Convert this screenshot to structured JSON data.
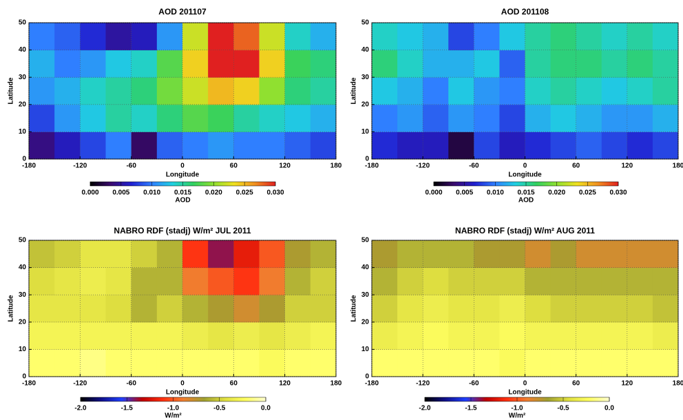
{
  "chart_data": [
    {
      "type": "heatmap",
      "title": "AOD 201107",
      "x_label": "Longitude",
      "y_label": "Latitude",
      "xlim": [
        -180,
        180
      ],
      "ylim": [
        0,
        50
      ],
      "xticks": [
        -180,
        -120,
        -60,
        0,
        60,
        120,
        180
      ],
      "yticks": [
        0,
        10,
        20,
        30,
        40,
        50
      ],
      "grid": true,
      "x": [
        -165,
        -135,
        -105,
        -75,
        -45,
        -15,
        15,
        45,
        75,
        105,
        135,
        165
      ],
      "y": [
        5,
        15,
        25,
        35,
        45
      ],
      "values": [
        [
          0.004,
          0.006,
          0.008,
          0.01,
          0.003,
          0.009,
          0.01,
          0.011,
          0.01,
          0.01,
          0.009,
          0.008
        ],
        [
          0.008,
          0.011,
          0.013,
          0.015,
          0.014,
          0.016,
          0.018,
          0.017,
          0.015,
          0.014,
          0.013,
          0.012
        ],
        [
          0.011,
          0.012,
          0.014,
          0.015,
          0.016,
          0.019,
          0.022,
          0.025,
          0.024,
          0.02,
          0.016,
          0.015
        ],
        [
          0.012,
          0.01,
          0.011,
          0.013,
          0.014,
          0.018,
          0.024,
          0.03,
          0.03,
          0.024,
          0.017,
          0.016
        ],
        [
          0.01,
          0.009,
          0.007,
          0.005,
          0.006,
          0.011,
          0.022,
          0.03,
          0.028,
          0.022,
          0.014,
          0.012
        ]
      ],
      "colorbar": {
        "label": "AOD",
        "lim": [
          0,
          0.03
        ],
        "ticks": [
          {
            "value": 0,
            "label": "0.000"
          },
          0.005,
          {
            "value": 0.01,
            "label": "0.010"
          },
          0.015,
          {
            "value": 0.02,
            "label": "0.020"
          },
          0.025,
          {
            "value": 0.03,
            "label": "0.030"
          }
        ],
        "colors": [
          "#000000",
          "#3a0a6e",
          "#2020d0",
          "#2f7fff",
          "#20d0e0",
          "#30d060",
          "#90e030",
          "#f0e020",
          "#f09020",
          "#e02020"
        ]
      }
    },
    {
      "type": "heatmap",
      "title": "AOD 201108",
      "x_label": "Longitude",
      "y_label": "Latitude",
      "xlim": [
        -180,
        180
      ],
      "ylim": [
        0,
        50
      ],
      "xticks": [
        -180,
        -120,
        -60,
        0,
        60,
        120,
        180
      ],
      "yticks": [
        0,
        10,
        20,
        30,
        40,
        50
      ],
      "grid": true,
      "x": [
        -165,
        -135,
        -105,
        -75,
        -45,
        -15,
        15,
        45,
        75,
        105,
        135,
        165
      ],
      "y": [
        5,
        15,
        25,
        35,
        45
      ],
      "values": [
        [
          0.007,
          0.006,
          0.006,
          0.002,
          0.008,
          0.006,
          0.007,
          0.008,
          0.009,
          0.008,
          0.007,
          0.008
        ],
        [
          0.01,
          0.011,
          0.009,
          0.011,
          0.01,
          0.008,
          0.012,
          0.013,
          0.012,
          0.011,
          0.011,
          0.012
        ],
        [
          0.013,
          0.012,
          0.01,
          0.013,
          0.011,
          0.01,
          0.014,
          0.015,
          0.014,
          0.013,
          0.014,
          0.015
        ],
        [
          0.016,
          0.014,
          0.012,
          0.012,
          0.013,
          0.009,
          0.015,
          0.016,
          0.016,
          0.015,
          0.016,
          0.015
        ],
        [
          0.014,
          0.013,
          0.012,
          0.008,
          0.01,
          0.013,
          0.015,
          0.016,
          0.015,
          0.014,
          0.015,
          0.014
        ]
      ],
      "colorbar": {
        "label": "AOD",
        "lim": [
          0,
          0.03
        ],
        "ticks": [
          {
            "value": 0,
            "label": "0.000"
          },
          0.005,
          {
            "value": 0.01,
            "label": "0.010"
          },
          0.015,
          {
            "value": 0.02,
            "label": "0.020"
          },
          0.025,
          {
            "value": 0.03,
            "label": "0.030"
          }
        ],
        "colors": [
          "#000000",
          "#3a0a6e",
          "#2020d0",
          "#2f7fff",
          "#20d0e0",
          "#30d060",
          "#90e030",
          "#f0e020",
          "#f09020",
          "#e02020"
        ]
      }
    },
    {
      "type": "heatmap",
      "title": "NABRO RDF (stadj)  W/m² JUL 2011",
      "x_label": "Longitude",
      "y_label": "Latitude",
      "xlim": [
        -180,
        180
      ],
      "ylim": [
        0,
        50
      ],
      "xticks": [
        -180,
        -120,
        -60,
        0,
        60,
        120,
        180
      ],
      "yticks": [
        0,
        10,
        20,
        30,
        40,
        50
      ],
      "grid": true,
      "x": [
        -165,
        -135,
        -105,
        -75,
        -45,
        -15,
        15,
        45,
        75,
        105,
        135,
        165
      ],
      "y": [
        5,
        15,
        25,
        35,
        45
      ],
      "values": [
        [
          -0.2,
          -0.2,
          -0.15,
          -0.2,
          -0.2,
          -0.2,
          -0.2,
          -0.2,
          -0.2,
          -0.25,
          -0.2,
          -0.2
        ],
        [
          -0.3,
          -0.3,
          -0.3,
          -0.3,
          -0.3,
          -0.3,
          -0.35,
          -0.4,
          -0.35,
          -0.4,
          -0.35,
          -0.3
        ],
        [
          -0.4,
          -0.4,
          -0.4,
          -0.45,
          -0.6,
          -0.5,
          -0.6,
          -0.7,
          -0.8,
          -0.7,
          -0.5,
          -0.5
        ],
        [
          -0.45,
          -0.4,
          -0.35,
          -0.4,
          -0.6,
          -0.6,
          -0.9,
          -1.0,
          -1.1,
          -0.9,
          -0.6,
          -0.5
        ],
        [
          -0.55,
          -0.5,
          -0.4,
          -0.4,
          -0.5,
          -0.6,
          -1.1,
          -1.4,
          -1.2,
          -1.0,
          -0.7,
          -0.6
        ]
      ],
      "colorbar": {
        "label": "W/m²",
        "lim": [
          -2,
          0
        ],
        "ticks": [
          {
            "value": -2,
            "label": "-2.0"
          },
          -1.5,
          {
            "value": -1,
            "label": "-1.0"
          },
          -0.5,
          {
            "value": 0,
            "label": "0.0"
          }
        ],
        "colors": [
          "#000000",
          "#10108a",
          "#2040ff",
          "#c00000",
          "#ff3010",
          "#f08030",
          "#a0a030",
          "#e0e040",
          "#ffff60",
          "#ffffd0"
        ]
      }
    },
    {
      "type": "heatmap",
      "title": "NABRO RDF (stadj)  W/m² AUG 2011",
      "x_label": "Longitude",
      "y_label": "Latitude",
      "xlim": [
        -180,
        180
      ],
      "ylim": [
        0,
        50
      ],
      "xticks": [
        -180,
        -120,
        -60,
        0,
        60,
        120,
        180
      ],
      "yticks": [
        0,
        10,
        20,
        30,
        40,
        50
      ],
      "grid": true,
      "x": [
        -165,
        -135,
        -105,
        -75,
        -45,
        -15,
        15,
        45,
        75,
        105,
        135,
        165
      ],
      "y": [
        5,
        15,
        25,
        35,
        45
      ],
      "values": [
        [
          -0.2,
          -0.2,
          -0.2,
          -0.2,
          -0.2,
          -0.25,
          -0.2,
          -0.2,
          -0.2,
          -0.2,
          -0.2,
          -0.2
        ],
        [
          -0.35,
          -0.3,
          -0.25,
          -0.3,
          -0.3,
          -0.25,
          -0.3,
          -0.3,
          -0.3,
          -0.3,
          -0.3,
          -0.35
        ],
        [
          -0.5,
          -0.4,
          -0.35,
          -0.4,
          -0.4,
          -0.35,
          -0.45,
          -0.5,
          -0.5,
          -0.5,
          -0.5,
          -0.55
        ],
        [
          -0.6,
          -0.5,
          -0.45,
          -0.5,
          -0.5,
          -0.5,
          -0.6,
          -0.6,
          -0.6,
          -0.6,
          -0.6,
          -0.6
        ],
        [
          -0.7,
          -0.6,
          -0.6,
          -0.6,
          -0.7,
          -0.7,
          -0.8,
          -0.7,
          -0.8,
          -0.8,
          -0.8,
          -0.8
        ]
      ],
      "colorbar": {
        "label": "W/m²",
        "lim": [
          -2,
          0
        ],
        "ticks": [
          {
            "value": -2,
            "label": "-2.0"
          },
          -1.5,
          {
            "value": -1,
            "label": "-1.0"
          },
          -0.5,
          {
            "value": 0,
            "label": "0.0"
          }
        ],
        "colors": [
          "#000000",
          "#10108a",
          "#2040ff",
          "#c00000",
          "#ff3010",
          "#f08030",
          "#a0a030",
          "#e0e040",
          "#ffff60",
          "#ffffd0"
        ]
      }
    }
  ]
}
